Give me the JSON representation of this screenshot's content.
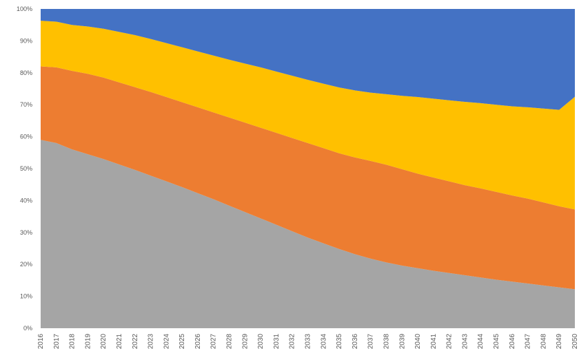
{
  "chart_data": {
    "type": "area",
    "stacked_percent": true,
    "title": "",
    "xlabel": "",
    "ylabel": "",
    "ylim": [
      0,
      100
    ],
    "grid": false,
    "legend": "none",
    "x": [
      2016,
      2017,
      2018,
      2019,
      2020,
      2021,
      2022,
      2023,
      2024,
      2025,
      2026,
      2027,
      2028,
      2029,
      2030,
      2031,
      2032,
      2033,
      2034,
      2035,
      2036,
      2037,
      2038,
      2039,
      2040,
      2041,
      2042,
      2043,
      2044,
      2045,
      2046,
      2047,
      2048,
      2049,
      2050
    ],
    "x_tick_labels": [
      "2016",
      "2017",
      "2018",
      "2019",
      "2020",
      "2021",
      "2022",
      "2023",
      "2024",
      "2025",
      "2026",
      "2027",
      "2028",
      "2029",
      "2030",
      "2031",
      "2032",
      "2033",
      "2034",
      "2035",
      "2036",
      "2037",
      "2038",
      "2039",
      "2040",
      "2041",
      "2042",
      "2043",
      "2044",
      "2045",
      "2046",
      "2047",
      "2048",
      "2049",
      "2050"
    ],
    "y_tick_labels": [
      "0%",
      "10%",
      "20%",
      "30%",
      "40%",
      "50%",
      "60%",
      "70%",
      "80%",
      "90%",
      "100%"
    ],
    "series": [
      {
        "color": "#a5a5a5",
        "values": [
          59,
          58,
          56,
          54.5,
          53,
          51.3,
          49.6,
          47.8,
          46,
          44.2,
          42.3,
          40.4,
          38.4,
          36.4,
          34.4,
          32.4,
          30.4,
          28.4,
          26.6,
          24.8,
          23.2,
          21.8,
          20.6,
          19.6,
          18.8,
          18,
          17.3,
          16.6,
          15.9,
          15.2,
          14.6,
          14,
          13.4,
          12.8,
          12.2
        ]
      },
      {
        "color": "#ed7d31",
        "values": [
          23,
          23.7,
          24.6,
          25.2,
          25.5,
          25.7,
          25.9,
          26.2,
          26.4,
          26.6,
          26.9,
          27.2,
          27.6,
          28,
          28.4,
          28.8,
          29.2,
          29.6,
          29.8,
          30,
          30.3,
          30.6,
          30.6,
          30.2,
          29.6,
          29.2,
          28.7,
          28.2,
          27.9,
          27.5,
          27,
          26.6,
          26,
          25.4,
          25
        ]
      },
      {
        "color": "#ffc000",
        "values": [
          14.3,
          14.3,
          14.4,
          14.8,
          15.3,
          15.8,
          16.3,
          16.6,
          16.9,
          17.2,
          17.5,
          17.8,
          18.1,
          18.5,
          18.9,
          19.2,
          19.5,
          19.8,
          20.2,
          20.6,
          21,
          21.4,
          22.1,
          23,
          24,
          24.7,
          25.4,
          26.1,
          26.7,
          27.3,
          27.9,
          28.6,
          29.4,
          30.2,
          35.3
        ]
      },
      {
        "color": "#4472c4",
        "values": [
          3.7,
          4,
          5,
          5.5,
          6.2,
          7.2,
          8.2,
          9.4,
          10.7,
          12,
          13.3,
          14.6,
          15.9,
          17.1,
          18.3,
          19.6,
          20.9,
          22.2,
          23.4,
          24.6,
          25.5,
          26.2,
          26.7,
          27.2,
          27.6,
          28.1,
          28.6,
          29.1,
          29.5,
          30,
          30.5,
          30.8,
          31.2,
          31.6,
          27.5
        ]
      }
    ]
  }
}
